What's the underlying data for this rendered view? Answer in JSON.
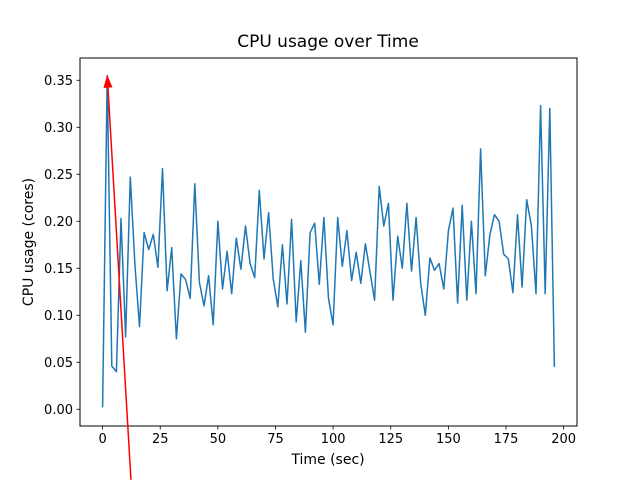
{
  "window": {
    "background": "#ffffff"
  },
  "chart_data": {
    "type": "line",
    "title": "CPU usage over Time",
    "xlabel": "Time (sec)",
    "ylabel": "CPU usage (cores)",
    "legend": null,
    "grid": false,
    "line_color": "#1f77b4",
    "line_width": 1.5,
    "xlim": [
      -9.8,
      205.8
    ],
    "ylim": [
      -0.0178,
      0.3737
    ],
    "x_ticks": [
      0,
      25,
      50,
      75,
      100,
      125,
      150,
      175,
      200
    ],
    "y_ticks": [
      0.0,
      0.05,
      0.1,
      0.15,
      0.2,
      0.25,
      0.3,
      0.35
    ],
    "x": [
      0,
      2,
      4,
      6,
      8,
      10,
      12,
      14,
      16,
      18,
      20,
      22,
      24,
      26,
      28,
      30,
      32,
      34,
      36,
      38,
      40,
      42,
      44,
      46,
      48,
      50,
      52,
      54,
      56,
      58,
      60,
      62,
      64,
      66,
      68,
      70,
      72,
      74,
      76,
      78,
      80,
      82,
      84,
      86,
      88,
      90,
      92,
      94,
      96,
      98,
      100,
      102,
      104,
      106,
      108,
      110,
      112,
      114,
      116,
      118,
      120,
      122,
      124,
      126,
      128,
      130,
      132,
      134,
      136,
      138,
      140,
      142,
      144,
      146,
      148,
      150,
      152,
      154,
      156,
      158,
      160,
      162,
      164,
      166,
      168,
      170,
      172,
      174,
      176,
      178,
      180,
      182,
      184,
      186,
      188,
      190,
      192,
      194,
      196
    ],
    "values": [
      0.002,
      0.355,
      0.046,
      0.04,
      0.203,
      0.077,
      0.247,
      0.154,
      0.088,
      0.188,
      0.17,
      0.186,
      0.151,
      0.256,
      0.126,
      0.172,
      0.075,
      0.144,
      0.138,
      0.118,
      0.24,
      0.135,
      0.11,
      0.142,
      0.09,
      0.2,
      0.128,
      0.168,
      0.123,
      0.182,
      0.149,
      0.195,
      0.155,
      0.14,
      0.233,
      0.16,
      0.209,
      0.139,
      0.109,
      0.175,
      0.112,
      0.202,
      0.093,
      0.158,
      0.082,
      0.188,
      0.198,
      0.133,
      0.204,
      0.118,
      0.09,
      0.204,
      0.152,
      0.19,
      0.137,
      0.167,
      0.134,
      0.176,
      0.146,
      0.116,
      0.237,
      0.195,
      0.219,
      0.116,
      0.184,
      0.15,
      0.219,
      0.147,
      0.204,
      0.134,
      0.1,
      0.161,
      0.148,
      0.155,
      0.128,
      0.19,
      0.214,
      0.113,
      0.217,
      0.116,
      0.2,
      0.123,
      0.277,
      0.142,
      0.186,
      0.207,
      0.2,
      0.165,
      0.16,
      0.124,
      0.207,
      0.13,
      0.223,
      0.195,
      0.123,
      0.323,
      0.123,
      0.32,
      0.045
    ],
    "annotation": {
      "type": "arrow",
      "color": "#ff0000",
      "tip": {
        "x": 2,
        "y": 0.356
      },
      "tail": {
        "x": 12.3,
        "y": -0.075
      }
    }
  }
}
